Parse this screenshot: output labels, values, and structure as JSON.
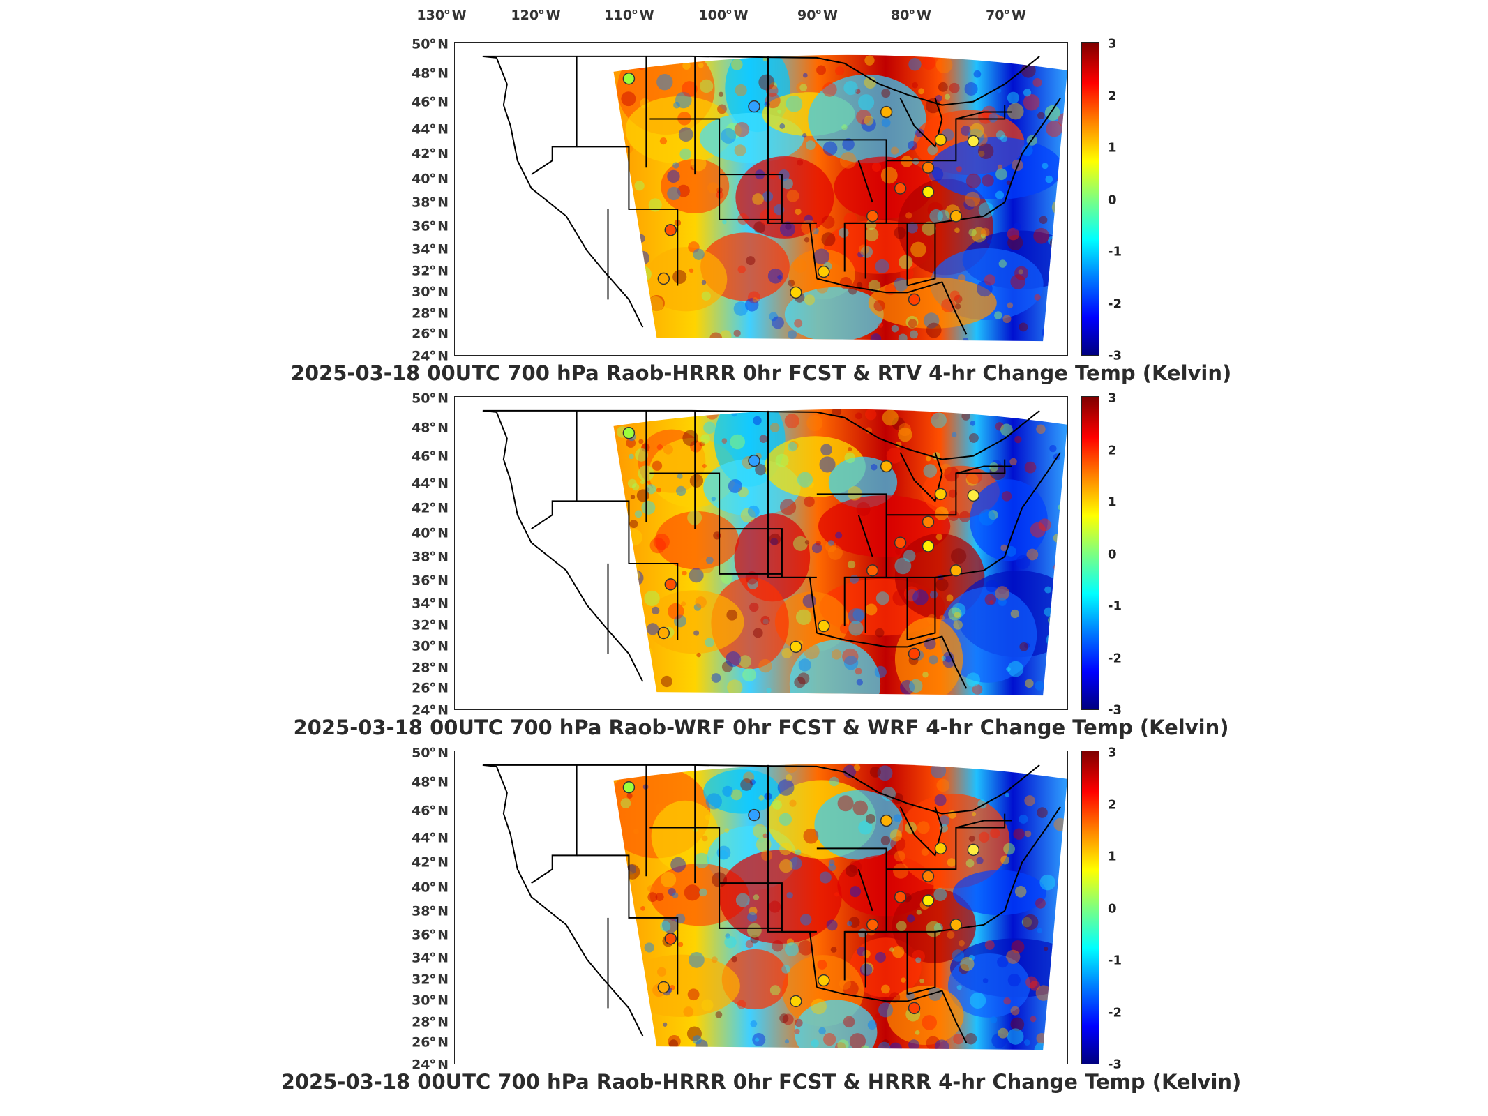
{
  "lon_axis": {
    "labels": [
      "130",
      "120",
      "110",
      "100",
      "90",
      "80",
      "70"
    ],
    "suffix": "W"
  },
  "lat_axis": {
    "labels": [
      "50",
      "48",
      "46",
      "44",
      "42",
      "40",
      "38",
      "36",
      "34",
      "32",
      "30",
      "28",
      "26",
      "24"
    ],
    "suffix": "N"
  },
  "colorbar": {
    "ticks": [
      "3",
      "2",
      "1",
      "0",
      "-1",
      "-2",
      "-3"
    ],
    "range": [
      -3,
      3
    ],
    "colormap": "jet",
    "colors": [
      "#00007f",
      "#0000ff",
      "#007fff",
      "#00ffff",
      "#7fff7f",
      "#ffff00",
      "#ff7f00",
      "#ff0000",
      "#7f0000"
    ]
  },
  "panels": [
    {
      "title": "2025-03-18 00UTC 700 hPa Raob-HRRR 0hr FCST & RTV 4-hr Change Temp (Kelvin)"
    },
    {
      "title": "2025-03-18 00UTC 700 hPa Raob-WRF 0hr FCST & WRF 4-hr Change Temp (Kelvin)"
    },
    {
      "title": "2025-03-18 00UTC 700 hPa Raob-HRRR 0hr FCST & HRRR 4-hr Change Temp (Kelvin)"
    }
  ]
}
